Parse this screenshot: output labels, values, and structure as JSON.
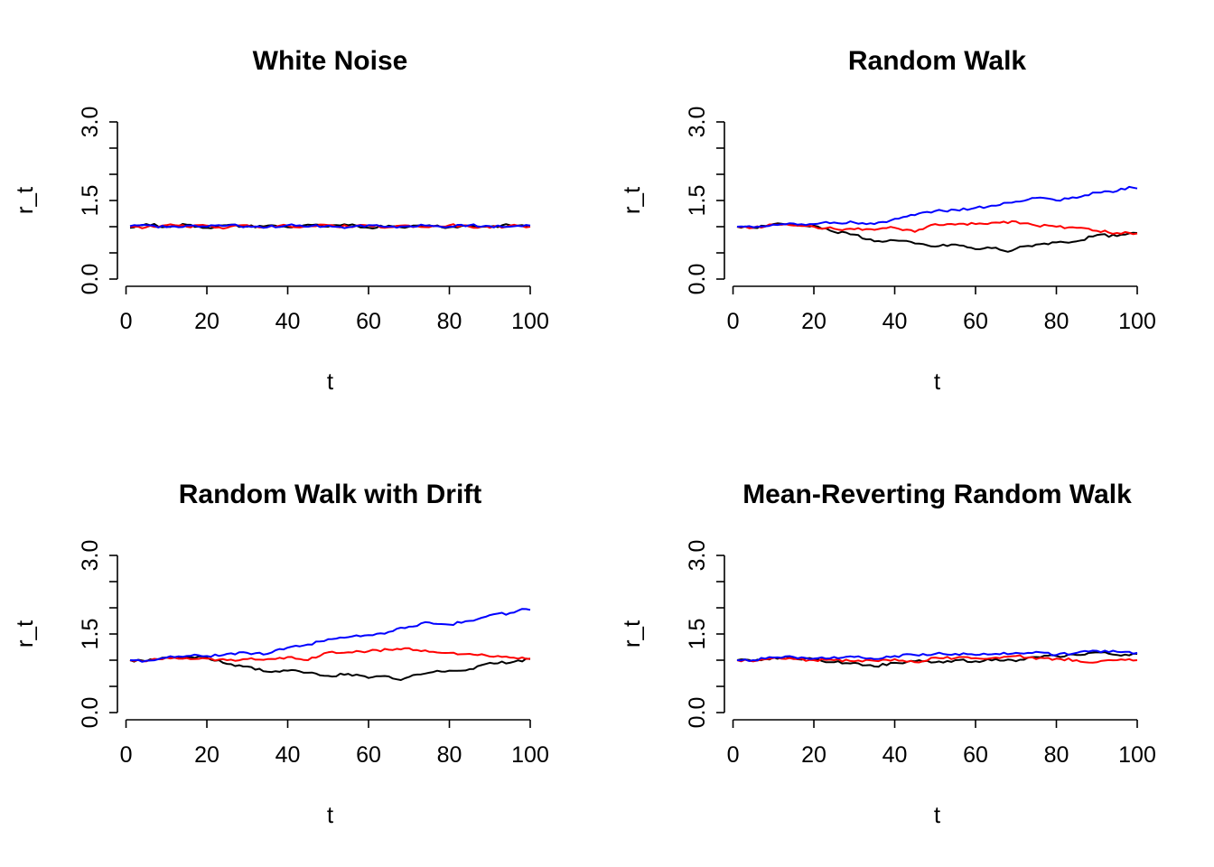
{
  "chart_data": [
    {
      "type": "line",
      "title": "White Noise",
      "xlabel": "t",
      "ylabel": "r_t",
      "xlim": [
        1,
        100
      ],
      "ylim": [
        0,
        3
      ],
      "xticks": [
        "0",
        "20",
        "40",
        "60",
        "80",
        "100"
      ],
      "yticks": [
        "0.0",
        "1.5",
        "3.0"
      ],
      "grid": false,
      "series": [
        {
          "color": "#000000",
          "points": [
            [
              1,
              0.98
            ],
            [
              5,
              1.05
            ],
            [
              10,
              1.0
            ],
            [
              15,
              1.04
            ],
            [
              20,
              0.98
            ],
            [
              25,
              1.03
            ],
            [
              30,
              1.0
            ],
            [
              35,
              1.02
            ],
            [
              40,
              0.99
            ],
            [
              45,
              1.04
            ],
            [
              50,
              1.0
            ],
            [
              55,
              1.03
            ],
            [
              60,
              0.98
            ],
            [
              65,
              1.02
            ],
            [
              70,
              1.0
            ],
            [
              75,
              1.03
            ],
            [
              80,
              0.99
            ],
            [
              85,
              1.02
            ],
            [
              90,
              1.0
            ],
            [
              95,
              1.03
            ],
            [
              100,
              1.01
            ]
          ]
        },
        {
          "color": "#ff0000",
          "points": [
            [
              1,
              1.0
            ],
            [
              5,
              0.99
            ],
            [
              10,
              1.03
            ],
            [
              15,
              1.0
            ],
            [
              20,
              1.02
            ],
            [
              25,
              0.98
            ],
            [
              30,
              1.03
            ],
            [
              35,
              0.99
            ],
            [
              40,
              1.02
            ],
            [
              45,
              1.0
            ],
            [
              50,
              1.03
            ],
            [
              55,
              1.0
            ],
            [
              60,
              1.02
            ],
            [
              65,
              0.99
            ],
            [
              70,
              1.02
            ],
            [
              75,
              0.99
            ],
            [
              80,
              1.03
            ],
            [
              85,
              1.0
            ],
            [
              90,
              0.98
            ],
            [
              95,
              1.02
            ],
            [
              100,
              1.0
            ]
          ]
        },
        {
          "color": "#0000ff",
          "points": [
            [
              1,
              1.01
            ],
            [
              5,
              1.03
            ],
            [
              10,
              0.99
            ],
            [
              15,
              1.02
            ],
            [
              20,
              1.0
            ],
            [
              25,
              1.02
            ],
            [
              30,
              1.01
            ],
            [
              35,
              0.99
            ],
            [
              40,
              1.03
            ],
            [
              45,
              1.0
            ],
            [
              50,
              1.02
            ],
            [
              55,
              0.99
            ],
            [
              60,
              1.03
            ],
            [
              65,
              1.0
            ],
            [
              70,
              1.01
            ],
            [
              75,
              1.02
            ],
            [
              80,
              1.0
            ],
            [
              85,
              1.03
            ],
            [
              90,
              1.01
            ],
            [
              95,
              1.0
            ],
            [
              100,
              1.02
            ]
          ]
        }
      ]
    },
    {
      "type": "line",
      "title": "Random Walk",
      "xlabel": "t",
      "ylabel": "r_t",
      "xlim": [
        1,
        100
      ],
      "ylim": [
        0,
        3
      ],
      "xticks": [
        "0",
        "20",
        "40",
        "60",
        "80",
        "100"
      ],
      "yticks": [
        "0.0",
        "1.5",
        "3.0"
      ],
      "grid": false,
      "series": [
        {
          "color": "#000000",
          "points": [
            [
              1,
              1.0
            ],
            [
              5,
              0.98
            ],
            [
              10,
              1.05
            ],
            [
              15,
              1.04
            ],
            [
              20,
              1.02
            ],
            [
              25,
              0.9
            ],
            [
              30,
              0.85
            ],
            [
              35,
              0.72
            ],
            [
              40,
              0.74
            ],
            [
              45,
              0.68
            ],
            [
              50,
              0.62
            ],
            [
              55,
              0.66
            ],
            [
              60,
              0.57
            ],
            [
              65,
              0.6
            ],
            [
              68,
              0.52
            ],
            [
              70,
              0.58
            ],
            [
              75,
              0.66
            ],
            [
              80,
              0.7
            ],
            [
              85,
              0.72
            ],
            [
              90,
              0.84
            ],
            [
              95,
              0.82
            ],
            [
              100,
              0.88
            ]
          ]
        },
        {
          "color": "#ff0000",
          "points": [
            [
              1,
              1.0
            ],
            [
              5,
              0.98
            ],
            [
              10,
              1.04
            ],
            [
              15,
              1.02
            ],
            [
              20,
              1.0
            ],
            [
              25,
              0.96
            ],
            [
              30,
              0.95
            ],
            [
              35,
              0.94
            ],
            [
              40,
              0.98
            ],
            [
              45,
              0.9
            ],
            [
              50,
              1.05
            ],
            [
              55,
              1.04
            ],
            [
              60,
              1.05
            ],
            [
              65,
              1.08
            ],
            [
              70,
              1.1
            ],
            [
              75,
              1.02
            ],
            [
              80,
              1.0
            ],
            [
              85,
              0.98
            ],
            [
              90,
              0.92
            ],
            [
              95,
              0.88
            ],
            [
              100,
              0.87
            ]
          ]
        },
        {
          "color": "#0000ff",
          "points": [
            [
              1,
              1.0
            ],
            [
              5,
              0.99
            ],
            [
              10,
              1.04
            ],
            [
              15,
              1.06
            ],
            [
              20,
              1.05
            ],
            [
              25,
              1.08
            ],
            [
              30,
              1.08
            ],
            [
              35,
              1.05
            ],
            [
              40,
              1.15
            ],
            [
              45,
              1.22
            ],
            [
              50,
              1.3
            ],
            [
              55,
              1.32
            ],
            [
              60,
              1.36
            ],
            [
              65,
              1.4
            ],
            [
              70,
              1.48
            ],
            [
              75,
              1.55
            ],
            [
              80,
              1.5
            ],
            [
              85,
              1.55
            ],
            [
              90,
              1.65
            ],
            [
              95,
              1.68
            ],
            [
              98,
              1.76
            ],
            [
              100,
              1.73
            ]
          ]
        }
      ]
    },
    {
      "type": "line",
      "title": "Random Walk with Drift",
      "xlabel": "t",
      "ylabel": "r_t",
      "xlim": [
        1,
        100
      ],
      "ylim": [
        0,
        3
      ],
      "xticks": [
        "0",
        "20",
        "40",
        "60",
        "80",
        "100"
      ],
      "yticks": [
        "0.0",
        "1.5",
        "3.0"
      ],
      "grid": false,
      "series": [
        {
          "color": "#000000",
          "points": [
            [
              1,
              1.0
            ],
            [
              5,
              0.98
            ],
            [
              10,
              1.05
            ],
            [
              15,
              1.05
            ],
            [
              20,
              1.05
            ],
            [
              25,
              0.93
            ],
            [
              30,
              0.88
            ],
            [
              35,
              0.78
            ],
            [
              40,
              0.8
            ],
            [
              45,
              0.76
            ],
            [
              50,
              0.7
            ],
            [
              55,
              0.74
            ],
            [
              60,
              0.66
            ],
            [
              65,
              0.69
            ],
            [
              68,
              0.62
            ],
            [
              70,
              0.68
            ],
            [
              75,
              0.76
            ],
            [
              80,
              0.8
            ],
            [
              85,
              0.83
            ],
            [
              90,
              0.95
            ],
            [
              95,
              0.95
            ],
            [
              100,
              1.02
            ]
          ]
        },
        {
          "color": "#ff0000",
          "points": [
            [
              1,
              1.0
            ],
            [
              5,
              0.98
            ],
            [
              10,
              1.05
            ],
            [
              15,
              1.04
            ],
            [
              20,
              1.03
            ],
            [
              25,
              1.0
            ],
            [
              30,
              1.02
            ],
            [
              35,
              1.02
            ],
            [
              40,
              1.06
            ],
            [
              45,
              1.0
            ],
            [
              50,
              1.15
            ],
            [
              55,
              1.15
            ],
            [
              60,
              1.17
            ],
            [
              65,
              1.2
            ],
            [
              70,
              1.23
            ],
            [
              75,
              1.16
            ],
            [
              80,
              1.14
            ],
            [
              85,
              1.12
            ],
            [
              90,
              1.07
            ],
            [
              95,
              1.05
            ],
            [
              100,
              1.03
            ]
          ]
        },
        {
          "color": "#0000ff",
          "points": [
            [
              1,
              1.0
            ],
            [
              5,
              0.99
            ],
            [
              10,
              1.05
            ],
            [
              15,
              1.08
            ],
            [
              20,
              1.08
            ],
            [
              25,
              1.12
            ],
            [
              30,
              1.14
            ],
            [
              35,
              1.12
            ],
            [
              40,
              1.24
            ],
            [
              45,
              1.3
            ],
            [
              50,
              1.4
            ],
            [
              55,
              1.44
            ],
            [
              60,
              1.48
            ],
            [
              65,
              1.54
            ],
            [
              70,
              1.64
            ],
            [
              75,
              1.72
            ],
            [
              80,
              1.68
            ],
            [
              85,
              1.75
            ],
            [
              90,
              1.86
            ],
            [
              95,
              1.9
            ],
            [
              98,
              1.98
            ],
            [
              100,
              1.96
            ]
          ]
        }
      ]
    },
    {
      "type": "line",
      "title": "Mean-Reverting Random Walk",
      "xlabel": "t",
      "ylabel": "r_t",
      "xlim": [
        1,
        100
      ],
      "ylim": [
        0,
        3
      ],
      "xticks": [
        "0",
        "20",
        "40",
        "60",
        "80",
        "100"
      ],
      "yticks": [
        "0.0",
        "1.5",
        "3.0"
      ],
      "grid": false,
      "series": [
        {
          "color": "#000000",
          "points": [
            [
              1,
              1.0
            ],
            [
              5,
              0.98
            ],
            [
              10,
              1.05
            ],
            [
              15,
              1.04
            ],
            [
              20,
              1.02
            ],
            [
              25,
              0.96
            ],
            [
              30,
              0.95
            ],
            [
              35,
              0.88
            ],
            [
              40,
              0.95
            ],
            [
              45,
              0.98
            ],
            [
              50,
              0.96
            ],
            [
              55,
              1.0
            ],
            [
              60,
              0.98
            ],
            [
              65,
              1.02
            ],
            [
              70,
              0.98
            ],
            [
              75,
              1.06
            ],
            [
              80,
              1.08
            ],
            [
              85,
              1.1
            ],
            [
              90,
              1.15
            ],
            [
              95,
              1.1
            ],
            [
              100,
              1.12
            ]
          ]
        },
        {
          "color": "#ff0000",
          "points": [
            [
              1,
              1.0
            ],
            [
              5,
              0.98
            ],
            [
              10,
              1.04
            ],
            [
              15,
              1.02
            ],
            [
              20,
              1.0
            ],
            [
              25,
              1.0
            ],
            [
              30,
              0.98
            ],
            [
              35,
              0.99
            ],
            [
              40,
              1.02
            ],
            [
              45,
              0.96
            ],
            [
              50,
              1.05
            ],
            [
              55,
              1.04
            ],
            [
              60,
              1.04
            ],
            [
              65,
              1.05
            ],
            [
              70,
              1.08
            ],
            [
              75,
              1.02
            ],
            [
              80,
              1.03
            ],
            [
              85,
              1.0
            ],
            [
              90,
              0.96
            ],
            [
              95,
              1.0
            ],
            [
              100,
              1.0
            ]
          ]
        },
        {
          "color": "#0000ff",
          "points": [
            [
              1,
              1.0
            ],
            [
              5,
              1.0
            ],
            [
              10,
              1.05
            ],
            [
              15,
              1.06
            ],
            [
              20,
              1.03
            ],
            [
              25,
              1.06
            ],
            [
              30,
              1.06
            ],
            [
              35,
              1.02
            ],
            [
              40,
              1.08
            ],
            [
              45,
              1.1
            ],
            [
              50,
              1.12
            ],
            [
              55,
              1.12
            ],
            [
              60,
              1.1
            ],
            [
              65,
              1.12
            ],
            [
              70,
              1.14
            ],
            [
              75,
              1.16
            ],
            [
              80,
              1.1
            ],
            [
              85,
              1.14
            ],
            [
              90,
              1.18
            ],
            [
              95,
              1.16
            ],
            [
              100,
              1.14
            ]
          ]
        }
      ]
    }
  ]
}
